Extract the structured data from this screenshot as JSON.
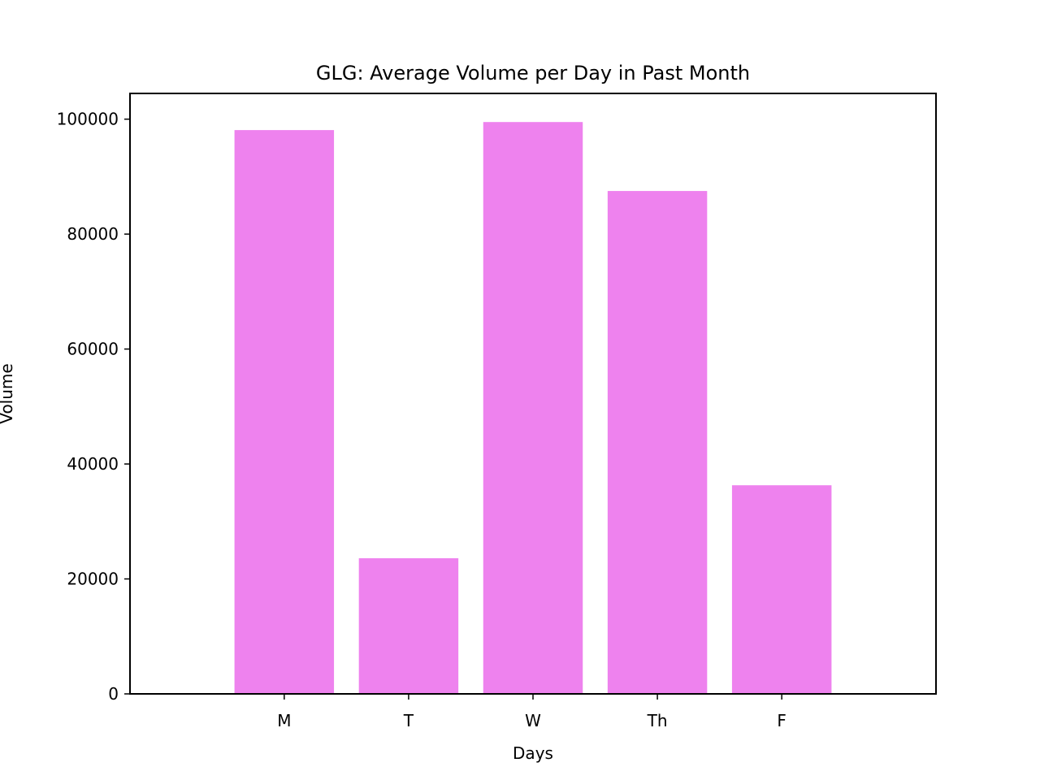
{
  "chart_data": {
    "type": "bar",
    "title": "GLG: Average Volume per Day in Past Month",
    "xlabel": "Days",
    "ylabel": "Volume",
    "categories": [
      "M",
      "T",
      "W",
      "Th",
      "F"
    ],
    "values": [
      98100,
      23600,
      99500,
      87500,
      36300
    ],
    "ylim": [
      0,
      104475
    ],
    "yticks": [
      0,
      20000,
      40000,
      60000,
      80000,
      100000
    ],
    "ytick_labels": [
      "0",
      "20000",
      "40000",
      "60000",
      "80000",
      "100000"
    ],
    "bar_color": "#EE82EE",
    "grid": false,
    "legend": "none"
  }
}
